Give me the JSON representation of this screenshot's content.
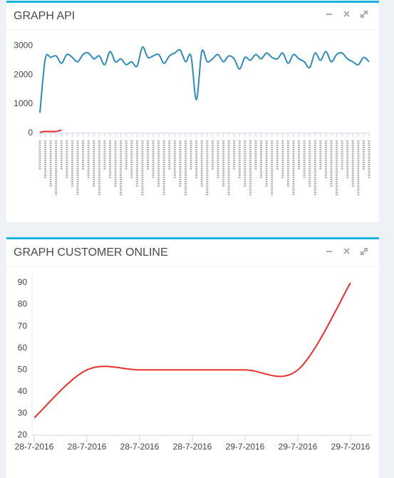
{
  "chart_data": [
    {
      "type": "line",
      "title": "GRAPH API",
      "smooth": true,
      "categories": [
        null,
        null,
        null,
        null,
        null,
        null,
        null,
        null,
        null,
        null,
        null,
        null,
        null,
        null,
        null,
        null,
        null,
        null,
        null,
        null,
        null,
        null,
        null,
        null,
        null,
        null,
        null,
        null,
        null,
        null,
        null,
        null,
        null,
        null,
        null,
        null,
        null,
        null,
        null,
        null,
        null,
        null,
        null,
        null,
        null,
        null,
        null,
        null,
        null,
        null,
        null,
        null,
        null,
        null,
        null,
        null,
        null,
        null,
        null,
        null,
        null,
        null
      ],
      "series": [
        {
          "color": "#2f8ab9",
          "values": [
            700,
            2550,
            2600,
            2650,
            2400,
            2700,
            2600,
            2450,
            2700,
            2750,
            2550,
            2650,
            2350,
            2800,
            2450,
            2550,
            2350,
            2450,
            2300,
            2950,
            2600,
            2650,
            2700,
            2400,
            2650,
            2750,
            2850,
            2450,
            2650,
            1150,
            2800,
            2450,
            2550,
            2700,
            2450,
            2650,
            2550,
            2200,
            2600,
            2500,
            2700,
            2550,
            2750,
            2600,
            2550,
            2750,
            2400,
            2700,
            2550,
            2450,
            2250,
            2750,
            2500,
            2800,
            2450,
            2700,
            2750,
            2550,
            2450,
            2350,
            2600,
            2450
          ]
        },
        {
          "color": "#e8302e",
          "values": [
            30,
            60,
            55,
            60,
            110,
            null,
            null,
            null,
            null,
            null,
            null,
            null,
            null,
            null,
            null,
            null,
            null,
            null,
            null,
            null,
            null,
            null,
            null,
            null,
            null,
            null,
            null,
            null,
            null,
            null,
            null,
            null,
            null,
            null,
            null,
            null,
            null,
            null,
            null,
            null,
            null,
            null,
            null,
            null,
            null,
            null,
            null,
            null,
            null,
            null,
            null,
            null,
            null,
            null,
            null,
            null,
            null,
            null,
            null,
            null,
            null,
            null
          ]
        }
      ],
      "ylim": [
        0,
        3200
      ],
      "yticks": [
        0,
        1000,
        2000,
        3000
      ],
      "grid": false
    },
    {
      "type": "line",
      "title": "GRAPH CUSTOMER ONLINE",
      "smooth": true,
      "categories": [
        "28-7-2016",
        "28-7-2016",
        "28-7-2016",
        "28-7-2016",
        "29-7-2016",
        "29-7-2016",
        "29-7-2016"
      ],
      "series": [
        {
          "color": "#e8302e",
          "values": [
            28,
            50,
            50,
            50,
            50,
            50,
            90
          ]
        }
      ],
      "ylim": [
        20,
        90
      ],
      "yticks": [
        20,
        30,
        40,
        50,
        60,
        70,
        80,
        90
      ],
      "grid": false
    }
  ]
}
